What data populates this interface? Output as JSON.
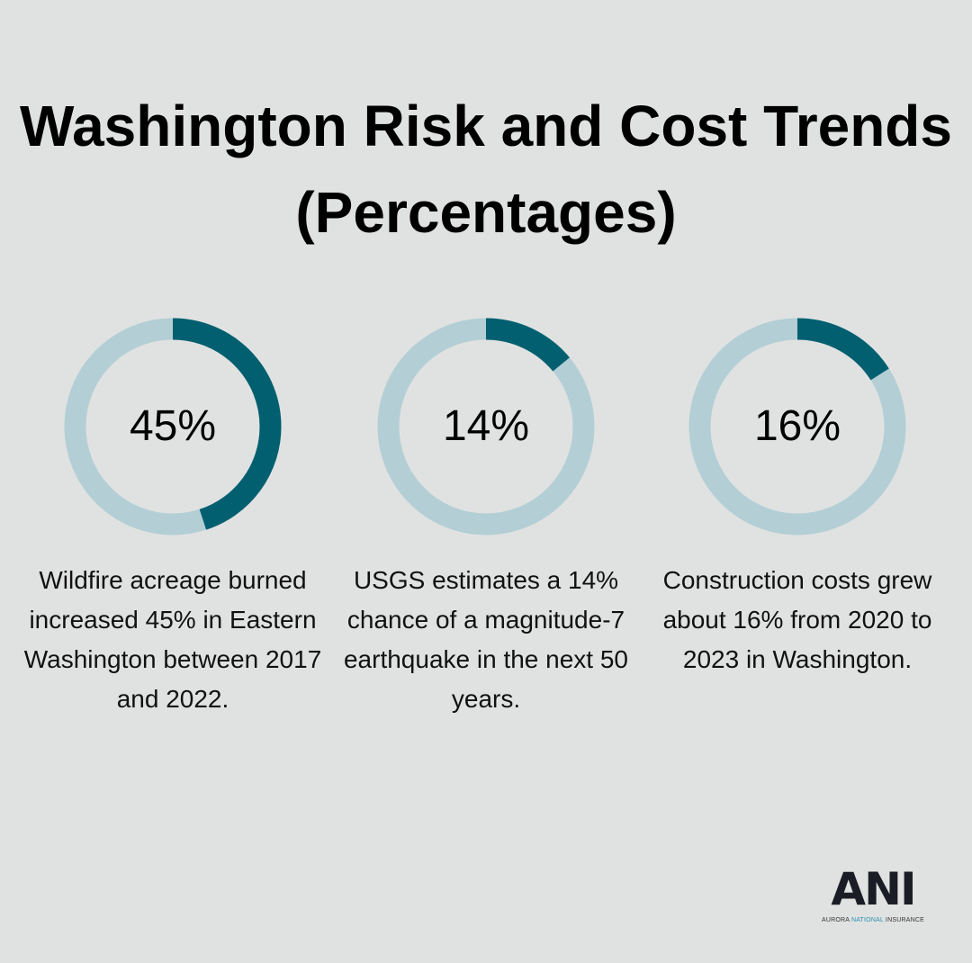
{
  "title": "Washington Risk and Cost Trends (Percentages)",
  "colors": {
    "filled": "#025f70",
    "track": "#b3cfd5",
    "background": "#e0e2e1"
  },
  "chart_data": [
    {
      "type": "pie",
      "variant": "donut",
      "values": [
        45,
        55
      ],
      "label": "45%",
      "description": "Wildfire acreage burned increased 45% in Eastern Washington between 2017 and 2022."
    },
    {
      "type": "pie",
      "variant": "donut",
      "values": [
        14,
        86
      ],
      "label": "14%",
      "description": "USGS estimates a 14% chance of a magnitude-7 earthquake in the next 50 years."
    },
    {
      "type": "pie",
      "variant": "donut",
      "values": [
        16,
        84
      ],
      "label": "16%",
      "description": "Construction costs grew about 16% from 2020 to 2023 in Washington."
    }
  ],
  "logo": {
    "mark": "ANI",
    "name_a": "AURORA ",
    "name_b": "NATIONAL",
    "name_c": " INSURANCE"
  }
}
